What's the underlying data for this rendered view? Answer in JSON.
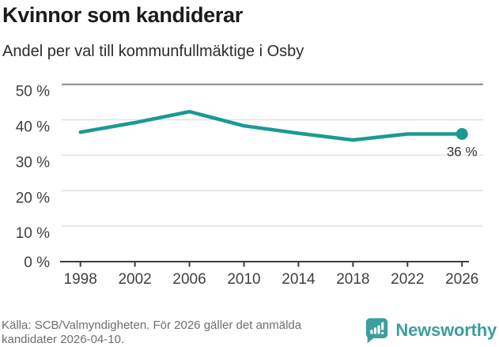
{
  "header": {
    "title": "Kvinnor som kandiderar",
    "subtitle": "Andel per val till kommunfullmäktige i Osby"
  },
  "chart_data": {
    "type": "line",
    "title": "Kvinnor som kandiderar",
    "subtitle": "Andel per val till kommunfullmäktige i Osby",
    "x": [
      1998,
      2002,
      2006,
      2010,
      2014,
      2018,
      2022,
      2026
    ],
    "values": [
      36.5,
      39.2,
      42.3,
      38.3,
      36.2,
      34.3,
      36,
      36
    ],
    "xtick_labels": [
      "1998",
      "2002",
      "2006",
      "2010",
      "2014",
      "2018",
      "2022",
      "2026"
    ],
    "ytick_labels": [
      "0 %",
      "10 %",
      "20 %",
      "30 %",
      "40 %",
      "50 %"
    ],
    "ylim": [
      0,
      50
    ],
    "ytick_step": 10,
    "grid": true,
    "legend_position": "none",
    "end_point_label": "36 %",
    "line_color": "#1A9A92"
  },
  "footer": {
    "source_lines": [
      "Källa: SCB/Valmyndigheten. För 2026 gäller det anmälda",
      "kandidater 2026-04-10."
    ],
    "brand_name": "Newsworthy"
  },
  "colors": {
    "accent_teal": "#1A9A92",
    "brand_teal": "#3D9E9E",
    "grid_light": "#E1E1E1",
    "grid_top": "#8A8A8A",
    "axis_dark": "#3D3D3D",
    "tick_text": "#3F3F3F",
    "annotation_text": "#333333",
    "title_text": "#1B1B1B",
    "muted_text": "#6E6E6E"
  }
}
